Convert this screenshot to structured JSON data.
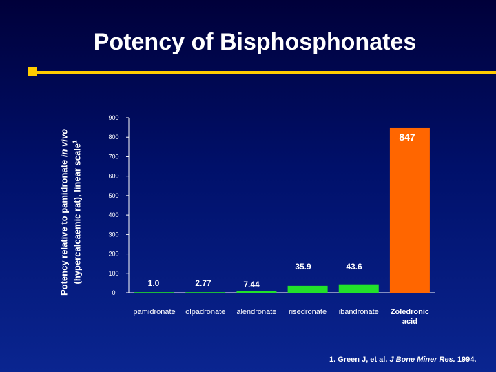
{
  "slide": {
    "title": "Potency of Bisphosphonates",
    "ylabel_line1_a": "Potency relative to pamidronate ",
    "ylabel_line1_b": "in vivo",
    "ylabel_line2_a": "(hypercalcaemic rat), linear scale",
    "ylabel_line2_sup": "1",
    "reference_a": "1. Green J, et al. ",
    "reference_b": "J Bone Miner Res.",
    "reference_c": " 1994."
  },
  "colors": {
    "background": "#00106a",
    "accent": "#ffcc00",
    "bar_green": "#22e22a",
    "bar_highlight": "#ff6600"
  },
  "chart_data": {
    "type": "bar",
    "categories": [
      "pamidronate",
      "olpadronate",
      "alendronate",
      "risedronate",
      "ibandronate",
      "Zoledronic acid"
    ],
    "values": [
      1.0,
      2.77,
      7.44,
      35.9,
      43.6,
      847
    ],
    "value_labels": [
      "1.0",
      "2.77",
      "7.44",
      "35.9",
      "43.6",
      "847"
    ],
    "highlight_category": "Zoledronic acid",
    "title": "",
    "xlabel": "",
    "ylabel": "Potency relative to pamidronate in vivo (hypercalcaemic rat), linear scale",
    "ylim": [
      0,
      900
    ],
    "yticks": [
      "0",
      "100",
      "200",
      "300",
      "400",
      "500",
      "600",
      "700",
      "800",
      "900"
    ],
    "grid": false,
    "legend": "none"
  }
}
